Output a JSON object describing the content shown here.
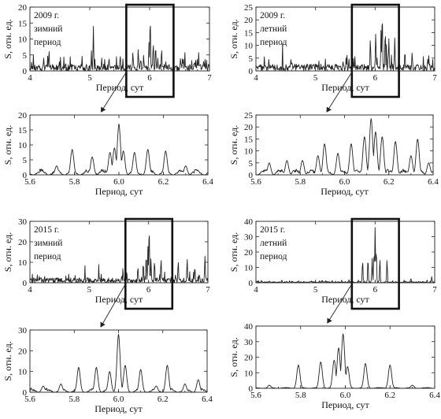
{
  "chart_data": [
    {
      "id": "p0",
      "type": "line",
      "title": "",
      "annotation": [
        "2009 г.",
        "зимний",
        "период"
      ],
      "xlabel": "Период, сут",
      "ylabel": "S, отн. ед.",
      "xlim": [
        4,
        7
      ],
      "ylim": [
        0,
        20
      ],
      "xticks": [
        4,
        5,
        6,
        7
      ],
      "yticks": [
        0,
        5,
        10,
        15,
        20
      ],
      "noise_level": 3.5,
      "peaks": [
        [
          5.06,
          14
        ],
        [
          5.72,
          6
        ],
        [
          5.81,
          7
        ],
        [
          5.9,
          5
        ],
        [
          5.99,
          9
        ],
        [
          6.01,
          17
        ],
        [
          6.06,
          9
        ],
        [
          6.1,
          8
        ],
        [
          6.2,
          7
        ],
        [
          6.55,
          4
        ],
        [
          6.75,
          3
        ]
      ],
      "zoom_box": [
        5.61,
        6.4
      ]
    },
    {
      "id": "p1",
      "type": "line",
      "title": "",
      "annotation": [
        "2009 г.",
        "летний",
        "период"
      ],
      "xlabel": "Период, сут",
      "ylabel": "S, отн. ед.",
      "xlim": [
        4,
        7
      ],
      "ylim": [
        0,
        25
      ],
      "xticks": [
        4,
        5,
        6,
        7
      ],
      "yticks": [
        0,
        5,
        10,
        15,
        20,
        25
      ],
      "noise_level": 4.5,
      "peaks": [
        [
          5.92,
          13
        ],
        [
          6.01,
          15
        ],
        [
          6.1,
          16
        ],
        [
          6.12,
          23
        ],
        [
          6.17,
          16
        ],
        [
          6.23,
          13
        ],
        [
          6.33,
          13
        ],
        [
          6.5,
          8
        ],
        [
          6.62,
          7
        ],
        [
          6.9,
          6
        ]
      ],
      "zoom_box": [
        5.61,
        6.4
      ]
    },
    {
      "id": "p2",
      "type": "line",
      "title": "",
      "annotation": [],
      "xlabel": "Период, сут",
      "ylabel": "S, отн. ед.",
      "xlim": [
        5.6,
        6.4
      ],
      "ylim": [
        0,
        20
      ],
      "xticks": [
        5.6,
        5.8,
        6.0,
        6.2,
        6.4
      ],
      "yticks": [
        0,
        5,
        10,
        15,
        20
      ],
      "noise_level": 2.0,
      "peaks": [
        [
          5.72,
          3
        ],
        [
          5.79,
          8.5
        ],
        [
          5.88,
          6
        ],
        [
          5.96,
          7.5
        ],
        [
          5.98,
          9
        ],
        [
          6.0,
          17
        ],
        [
          6.02,
          8
        ],
        [
          6.07,
          7.5
        ],
        [
          6.13,
          8.5
        ],
        [
          6.21,
          8
        ],
        [
          6.3,
          3
        ]
      ],
      "zoom_box": null
    },
    {
      "id": "p3",
      "type": "line",
      "title": "",
      "annotation": [],
      "xlabel": "Период, сут",
      "ylabel": "S, отн. ед.",
      "xlim": [
        5.6,
        6.4
      ],
      "ylim": [
        0,
        25
      ],
      "xticks": [
        5.6,
        5.8,
        6.0,
        6.2,
        6.4
      ],
      "yticks": [
        0,
        5,
        10,
        15,
        20,
        25
      ],
      "noise_level": 2.5,
      "peaks": [
        [
          5.66,
          5
        ],
        [
          5.74,
          6
        ],
        [
          5.81,
          6
        ],
        [
          5.88,
          8
        ],
        [
          5.91,
          13
        ],
        [
          5.97,
          9
        ],
        [
          6.03,
          13
        ],
        [
          6.09,
          16
        ],
        [
          6.12,
          23.5
        ],
        [
          6.14,
          18
        ],
        [
          6.17,
          16
        ],
        [
          6.23,
          14
        ],
        [
          6.3,
          8
        ],
        [
          6.33,
          15
        ],
        [
          6.38,
          5
        ]
      ],
      "zoom_box": null
    },
    {
      "id": "p4",
      "type": "line",
      "title": "",
      "annotation": [
        "2015 г.",
        "зимний",
        "период"
      ],
      "xlabel": "Период, сут",
      "ylabel": "S, отн. ед.",
      "xlim": [
        4,
        7
      ],
      "ylim": [
        0,
        30
      ],
      "xticks": [
        4,
        5,
        6,
        7
      ],
      "yticks": [
        0,
        10,
        20,
        30
      ],
      "noise_level": 4.0,
      "peaks": [
        [
          5.82,
          8
        ],
        [
          5.91,
          10
        ],
        [
          5.96,
          14
        ],
        [
          5.99,
          18
        ],
        [
          6.01,
          28
        ],
        [
          6.04,
          12
        ],
        [
          6.1,
          11
        ],
        [
          6.21,
          12
        ],
        [
          6.5,
          11
        ],
        [
          6.65,
          12
        ],
        [
          6.78,
          8
        ],
        [
          6.95,
          13
        ]
      ],
      "zoom_box": [
        5.61,
        6.4
      ]
    },
    {
      "id": "p5",
      "type": "line",
      "title": "",
      "annotation": [
        "2015 г.",
        "летний",
        "период"
      ],
      "xlabel": "Период, сут",
      "ylabel": "S, отн. ед.",
      "xlim": [
        4,
        7
      ],
      "ylim": [
        0,
        40
      ],
      "xticks": [
        4,
        5,
        6,
        7
      ],
      "yticks": [
        0,
        10,
        20,
        30,
        40
      ],
      "noise_level": 1.2,
      "peaks": [
        [
          5.79,
          15
        ],
        [
          5.88,
          16
        ],
        [
          5.95,
          16
        ],
        [
          5.98,
          20
        ],
        [
          6.0,
          36
        ],
        [
          6.02,
          22
        ],
        [
          6.08,
          16
        ],
        [
          6.2,
          15
        ],
        [
          6.6,
          3
        ],
        [
          6.95,
          4
        ]
      ],
      "zoom_box": [
        5.61,
        6.4
      ]
    },
    {
      "id": "p6",
      "type": "line",
      "title": "",
      "annotation": [],
      "xlabel": "Период, сут",
      "ylabel": "S, отн. ед.",
      "xlim": [
        5.6,
        6.4
      ],
      "ylim": [
        0,
        30
      ],
      "xticks": [
        5.6,
        5.8,
        6.0,
        6.2,
        6.4
      ],
      "yticks": [
        0,
        10,
        20,
        30
      ],
      "noise_level": 2.0,
      "peaks": [
        [
          5.66,
          3
        ],
        [
          5.74,
          4
        ],
        [
          5.82,
          12
        ],
        [
          5.9,
          12
        ],
        [
          5.96,
          10
        ],
        [
          6.0,
          28
        ],
        [
          6.03,
          13
        ],
        [
          6.1,
          11
        ],
        [
          6.17,
          3
        ],
        [
          6.22,
          13
        ],
        [
          6.3,
          4
        ],
        [
          6.36,
          6
        ]
      ],
      "zoom_box": null
    },
    {
      "id": "p7",
      "type": "line",
      "title": "",
      "annotation": [],
      "xlabel": "Период, сут",
      "ylabel": "S, отн. ед.",
      "xlim": [
        5.6,
        6.4
      ],
      "ylim": [
        0,
        40
      ],
      "xticks": [
        5.6,
        5.8,
        6.0,
        6.2,
        6.4
      ],
      "yticks": [
        0,
        10,
        20,
        30,
        40
      ],
      "noise_level": 0.6,
      "peaks": [
        [
          5.66,
          2
        ],
        [
          5.79,
          15
        ],
        [
          5.89,
          17
        ],
        [
          5.95,
          18
        ],
        [
          5.97,
          26
        ],
        [
          5.99,
          35
        ],
        [
          6.01,
          14
        ],
        [
          6.09,
          16
        ],
        [
          6.2,
          15
        ],
        [
          6.3,
          2
        ]
      ],
      "zoom_box": null
    }
  ]
}
